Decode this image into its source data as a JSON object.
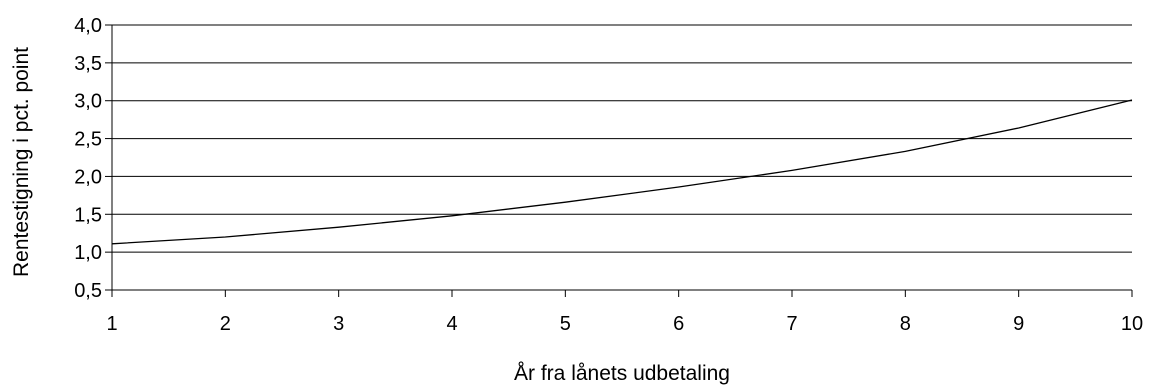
{
  "chart_data": {
    "type": "line",
    "title": "",
    "xlabel": "År fra lånets udbetaling",
    "ylabel": "Rentestigning i pct. point",
    "x": [
      1,
      2,
      3,
      4,
      5,
      6,
      7,
      8,
      9,
      10
    ],
    "x_tick_labels": [
      "1",
      "2",
      "3",
      "4",
      "5",
      "6",
      "7",
      "8",
      "9",
      "10"
    ],
    "y_tick_labels": [
      "0,5",
      "1,0",
      "1,5",
      "2,0",
      "2,5",
      "3,0",
      "3,5",
      "4,0"
    ],
    "y_ticks": [
      0.5,
      1.0,
      1.5,
      2.0,
      2.5,
      3.0,
      3.5,
      4.0
    ],
    "ylim": [
      0.5,
      4.0
    ],
    "xlim": [
      1,
      10
    ],
    "grid": "horizontal",
    "legend": "none",
    "series": [
      {
        "values": [
          1.11,
          1.2,
          1.33,
          1.48,
          1.66,
          1.86,
          2.08,
          2.33,
          2.64,
          3.01
        ],
        "color": "#000000"
      }
    ]
  }
}
